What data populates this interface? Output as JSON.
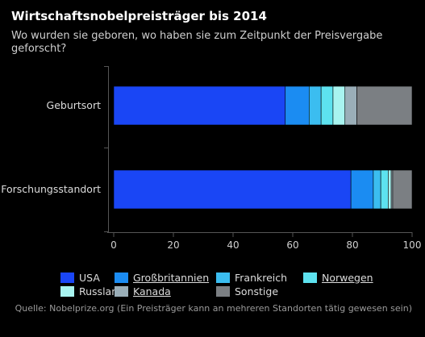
{
  "title": "Wirtschaftsnobelpreisträger bis 2014",
  "subtitle": "Wo wurden sie geboren, wo haben sie zum Zeitpunkt der Preisvergabe geforscht?",
  "source": "Quelle: Nobelprize.org (Ein Preisträger kann an mehreren Standorten tätig gewesen sein)",
  "chart_data": {
    "type": "bar",
    "orientation": "horizontal",
    "stacked": true,
    "categories": [
      "Geburtsort",
      "Forschungsstandort"
    ],
    "series": [
      {
        "name": "USA",
        "values": [
          57.5,
          79.5
        ],
        "color": "#1a46f5"
      },
      {
        "name": "Großbritannien",
        "values": [
          8.0,
          7.5
        ],
        "color": "#1b8cf2"
      },
      {
        "name": "Frankreich",
        "values": [
          4.0,
          2.5
        ],
        "color": "#3bbdf0"
      },
      {
        "name": "Norwegen",
        "values": [
          4.0,
          2.5
        ],
        "color": "#5de2ef"
      },
      {
        "name": "Russland",
        "values": [
          4.0,
          1.0
        ],
        "color": "#a8f4f0"
      },
      {
        "name": "Kanada",
        "values": [
          4.0,
          0.5
        ],
        "color": "#9aaeb8"
      },
      {
        "name": "Sonstige",
        "values": [
          18.5,
          6.5
        ],
        "color": "#7b7f83"
      }
    ],
    "xlim": [
      0,
      100
    ],
    "xticks": [
      0,
      20,
      40,
      60,
      80,
      100
    ],
    "grid": false,
    "legend_position": "bottom"
  },
  "legend_links": [
    "Großbritannien",
    "Norwegen",
    "Kanada"
  ]
}
